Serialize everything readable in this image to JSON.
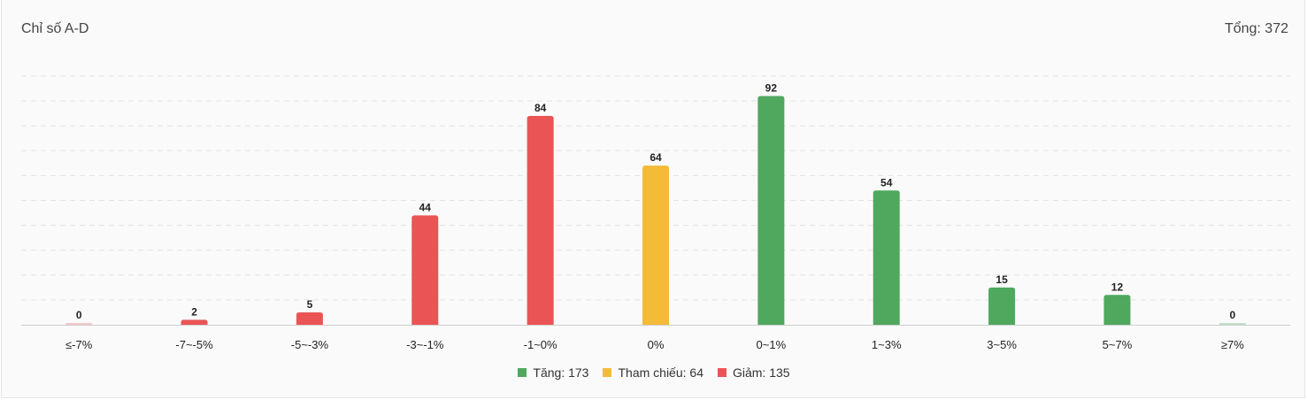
{
  "title": "Chỉ số A-D",
  "total_label": "Tổng: 372",
  "colors": {
    "up": "#4fa85e",
    "ref": "#f3bb38",
    "down": "#ea5455",
    "zero": "#f2c7c7",
    "zero_up": "#bfe0c5"
  },
  "legend": [
    {
      "label": "Tăng: 173",
      "color": "#4fa85e"
    },
    {
      "label": "Tham chiếu: 64",
      "color": "#f3bb38"
    },
    {
      "label": "Giảm: 135",
      "color": "#ea5455"
    }
  ],
  "chart_data": {
    "type": "bar",
    "categories": [
      "≤-7%",
      "-7~-5%",
      "-5~-3%",
      "-3~-1%",
      "-1~0%",
      "0%",
      "0~1%",
      "1~3%",
      "3~5%",
      "5~7%",
      "≥7%"
    ],
    "values": [
      0,
      2,
      5,
      44,
      84,
      64,
      92,
      54,
      15,
      12,
      0
    ],
    "groups": [
      "down",
      "down",
      "down",
      "down",
      "down",
      "ref",
      "up",
      "up",
      "up",
      "up",
      "up"
    ],
    "ylim": [
      0,
      100
    ],
    "grid": true,
    "legend_position": "bottom"
  }
}
